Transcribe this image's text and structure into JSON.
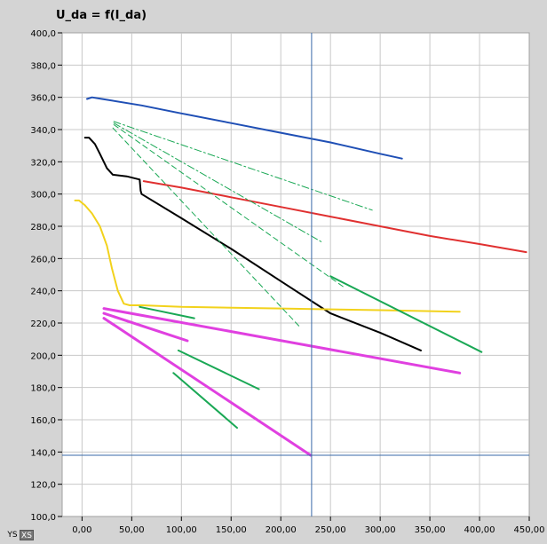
{
  "title": "U_da = f(I_da)",
  "buttons": {
    "ys_label": "YS",
    "xs_label": "XS"
  },
  "chart_data": {
    "type": "line",
    "title": "U_da = f(I_da)",
    "xlabel": "",
    "ylabel": "",
    "xlim": [
      -20,
      450
    ],
    "ylim": [
      100,
      400
    ],
    "x_ticks": [
      0,
      50,
      100,
      150,
      200,
      250,
      300,
      350,
      400,
      450
    ],
    "x_tick_labels": [
      "0,00",
      "50,00",
      "100,00",
      "150,00",
      "200,00",
      "250,00",
      "300,00",
      "350,00",
      "400,00",
      "450,00"
    ],
    "y_ticks": [
      100,
      120,
      140,
      160,
      180,
      200,
      220,
      240,
      260,
      280,
      300,
      320,
      340,
      360,
      380,
      400
    ],
    "y_tick_labels": [
      "100,0",
      "120,0",
      "140,0",
      "160,0",
      "180,0",
      "200,0",
      "220,0",
      "240,0",
      "260,0",
      "280,0",
      "300,0",
      "320,0",
      "340,0",
      "360,0",
      "380,0",
      "400,0"
    ],
    "grid": true,
    "cursor": {
      "x": 231,
      "y": 138
    },
    "colors": {
      "blue": "#1f4fb5",
      "red": "#e03030",
      "black": "#000000",
      "yellow": "#f2d21c",
      "green": "#1aa855",
      "magenta": "#e040e0",
      "cursor": "#3a6aa8",
      "grid": "#c8c8c8"
    },
    "series": [
      {
        "color": "blue",
        "style": "solid",
        "width": 2,
        "x": [
          5,
          10,
          20,
          60,
          100,
          150,
          200,
          250,
          300,
          322
        ],
        "y": [
          359,
          360,
          359,
          355,
          350,
          344,
          338,
          332,
          325,
          322
        ]
      },
      {
        "color": "red",
        "style": "solid",
        "width": 2,
        "x": [
          62,
          100,
          150,
          200,
          250,
          300,
          350,
          400,
          447
        ],
        "y": [
          308,
          304,
          298,
          292,
          286,
          280,
          274,
          269,
          264
        ]
      },
      {
        "color": "black",
        "style": "solid",
        "width": 2,
        "x": [
          3,
          7,
          13,
          18,
          25,
          31,
          45,
          58,
          59,
          60,
          100,
          150,
          200,
          250,
          300,
          341
        ],
        "y": [
          335,
          335,
          331,
          325,
          316,
          312,
          311,
          309,
          302,
          300,
          285,
          266,
          246,
          226,
          214,
          203
        ]
      },
      {
        "color": "yellow",
        "style": "solid",
        "width": 2,
        "x": [
          -7,
          -3,
          3,
          10,
          18,
          25,
          30,
          36,
          42,
          48,
          60,
          100,
          200,
          300,
          380
        ],
        "y": [
          296,
          296,
          293,
          288,
          280,
          268,
          254,
          240,
          232,
          231,
          231,
          230,
          229,
          228,
          227
        ]
      },
      {
        "color": "green",
        "style": "solid",
        "width": 2,
        "x": [
          250,
          402
        ],
        "y": [
          249,
          202
        ]
      },
      {
        "color": "green",
        "style": "solid",
        "width": 2,
        "x": [
          58,
          113
        ],
        "y": [
          230,
          223
        ]
      },
      {
        "color": "green",
        "style": "solid",
        "width": 2,
        "x": [
          97,
          178
        ],
        "y": [
          203,
          179
        ]
      },
      {
        "color": "green",
        "style": "solid",
        "width": 2,
        "x": [
          92,
          156
        ],
        "y": [
          189,
          155
        ]
      },
      {
        "color": "green",
        "style": "dashdot",
        "width": 1,
        "x": [
          32,
          292
        ],
        "y": [
          345,
          290
        ]
      },
      {
        "color": "green",
        "style": "dashdot",
        "width": 1,
        "x": [
          32,
          242
        ],
        "y": [
          344,
          270
        ]
      },
      {
        "color": "green",
        "style": "dashed",
        "width": 1,
        "x": [
          32,
          264
        ],
        "y": [
          343,
          242
        ]
      },
      {
        "color": "green",
        "style": "dashed",
        "width": 1,
        "x": [
          31,
          220
        ],
        "y": [
          341,
          217
        ]
      },
      {
        "color": "magenta",
        "style": "solid",
        "width": 3,
        "x": [
          22,
          380
        ],
        "y": [
          229,
          189
        ]
      },
      {
        "color": "magenta",
        "style": "solid",
        "width": 3,
        "x": [
          22,
          106
        ],
        "y": [
          226,
          209
        ]
      },
      {
        "color": "magenta",
        "style": "solid",
        "width": 3,
        "x": [
          22,
          230
        ],
        "y": [
          223,
          138
        ]
      }
    ]
  }
}
